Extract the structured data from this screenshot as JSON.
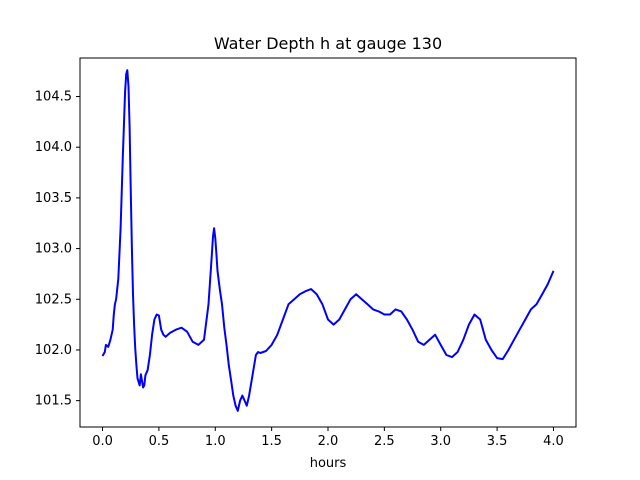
{
  "chart_data": {
    "type": "line",
    "title": "Water Depth h at gauge 130",
    "xlabel": "hours",
    "ylabel": "",
    "xlim": [
      -0.2,
      4.2
    ],
    "ylim": [
      101.24,
      104.88
    ],
    "xticks": [
      0.0,
      0.5,
      1.0,
      1.5,
      2.0,
      2.5,
      3.0,
      3.5,
      4.0
    ],
    "xtick_labels": [
      "0.0",
      "0.5",
      "1.0",
      "1.5",
      "2.0",
      "2.5",
      "3.0",
      "3.5",
      "4.0"
    ],
    "yticks": [
      101.5,
      102.0,
      102.5,
      103.0,
      103.5,
      104.0,
      104.5
    ],
    "ytick_labels": [
      "101.5",
      "102.0",
      "102.5",
      "103.0",
      "103.5",
      "104.0",
      "104.5"
    ],
    "grid": false,
    "series": [
      {
        "color": "#0000ff",
        "x": [
          0.0,
          0.02,
          0.03,
          0.05,
          0.07,
          0.09,
          0.1,
          0.11,
          0.12,
          0.14,
          0.16,
          0.18,
          0.2,
          0.21,
          0.22,
          0.23,
          0.24,
          0.25,
          0.26,
          0.27,
          0.28,
          0.29,
          0.3,
          0.31,
          0.33,
          0.34,
          0.36,
          0.37,
          0.38,
          0.4,
          0.42,
          0.44,
          0.46,
          0.48,
          0.5,
          0.52,
          0.54,
          0.56,
          0.58,
          0.6,
          0.65,
          0.7,
          0.75,
          0.8,
          0.85,
          0.9,
          0.94,
          0.97,
          0.98,
          0.99,
          1.0,
          1.01,
          1.02,
          1.04,
          1.06,
          1.08,
          1.1,
          1.12,
          1.14,
          1.16,
          1.18,
          1.2,
          1.22,
          1.24,
          1.26,
          1.28,
          1.3,
          1.33,
          1.36,
          1.38,
          1.4,
          1.45,
          1.5,
          1.55,
          1.6,
          1.65,
          1.7,
          1.75,
          1.8,
          1.85,
          1.9,
          1.95,
          2.0,
          2.05,
          2.1,
          2.15,
          2.2,
          2.25,
          2.3,
          2.35,
          2.4,
          2.45,
          2.5,
          2.55,
          2.6,
          2.65,
          2.7,
          2.75,
          2.8,
          2.85,
          2.9,
          2.95,
          3.0,
          3.05,
          3.1,
          3.15,
          3.2,
          3.25,
          3.3,
          3.35,
          3.4,
          3.45,
          3.5,
          3.55,
          3.6,
          3.65,
          3.7,
          3.75,
          3.8,
          3.85,
          3.9,
          3.95,
          4.0
        ],
        "y": [
          101.94,
          101.98,
          102.05,
          102.03,
          102.1,
          102.2,
          102.35,
          102.45,
          102.5,
          102.7,
          103.2,
          103.9,
          104.55,
          104.72,
          104.76,
          104.6,
          104.2,
          103.6,
          103.0,
          102.55,
          102.25,
          102.02,
          101.85,
          101.72,
          101.65,
          101.76,
          101.63,
          101.65,
          101.75,
          101.8,
          101.95,
          102.15,
          102.3,
          102.35,
          102.34,
          102.2,
          102.15,
          102.13,
          102.15,
          102.17,
          102.2,
          102.22,
          102.18,
          102.08,
          102.05,
          102.1,
          102.45,
          102.95,
          103.12,
          103.2,
          103.1,
          102.95,
          102.78,
          102.6,
          102.45,
          102.22,
          102.05,
          101.85,
          101.7,
          101.55,
          101.45,
          101.4,
          101.5,
          101.55,
          101.5,
          101.45,
          101.55,
          101.75,
          101.95,
          101.98,
          101.97,
          101.99,
          102.05,
          102.15,
          102.3,
          102.45,
          102.5,
          102.55,
          102.58,
          102.6,
          102.55,
          102.45,
          102.3,
          102.25,
          102.3,
          102.4,
          102.5,
          102.55,
          102.5,
          102.45,
          102.4,
          102.38,
          102.35,
          102.35,
          102.4,
          102.38,
          102.3,
          102.2,
          102.08,
          102.05,
          102.1,
          102.15,
          102.05,
          101.95,
          101.93,
          101.98,
          102.1,
          102.25,
          102.35,
          102.3,
          102.1,
          102.0,
          101.92,
          101.91,
          102.0,
          102.1,
          102.2,
          102.3,
          102.4,
          102.45,
          102.55,
          102.65,
          102.78
        ]
      }
    ]
  }
}
